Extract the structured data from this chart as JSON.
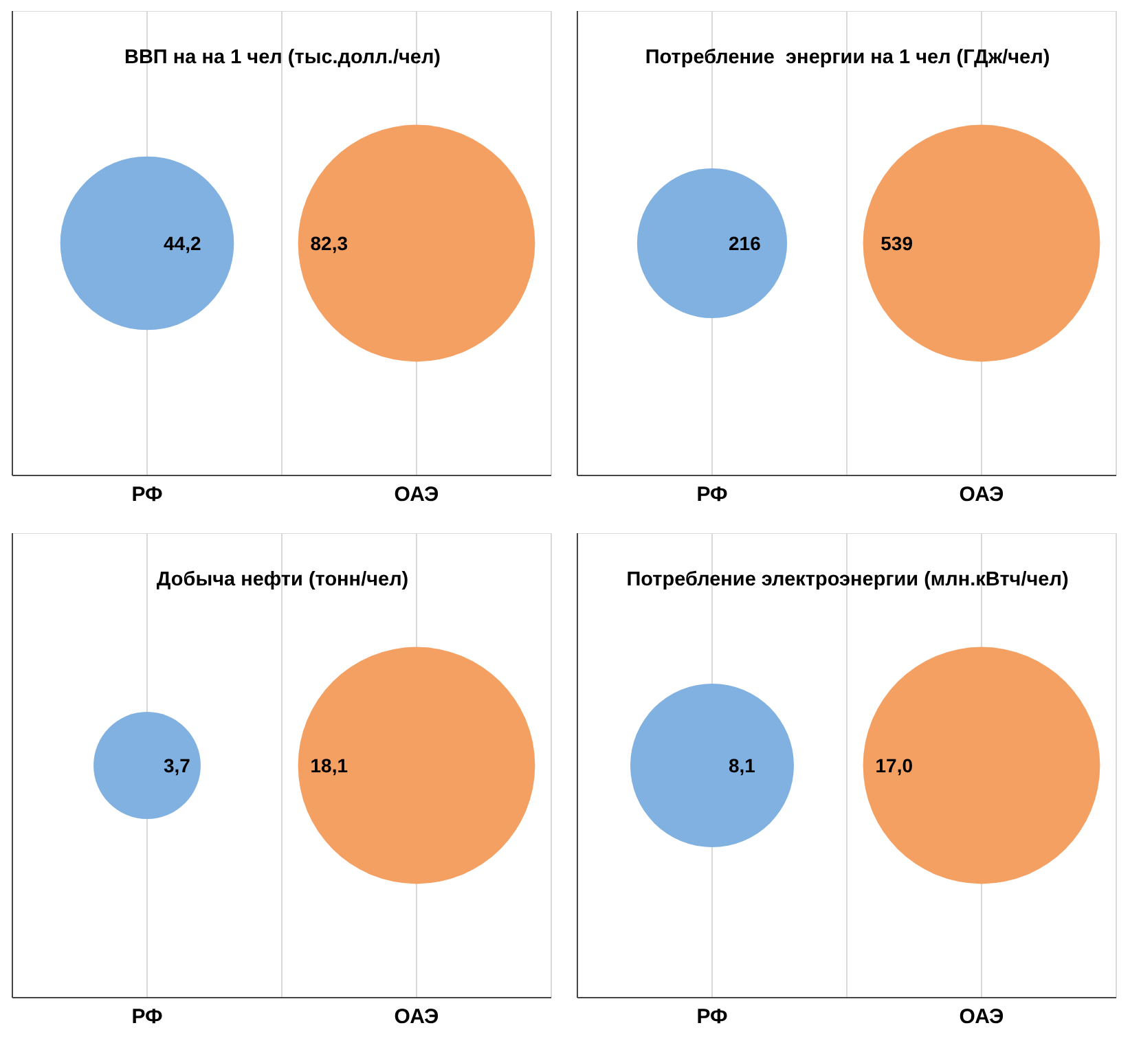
{
  "chart_data": [
    {
      "type": "other",
      "title": "ВВП на на 1 чел (тыс.долл./чел)",
      "categories": [
        "РФ",
        "ОАЭ"
      ],
      "values": [
        44.2,
        82.3
      ],
      "value_labels": [
        "44,2",
        "82,3"
      ],
      "colors": [
        "#80b1e1",
        "#f4a063"
      ]
    },
    {
      "type": "other",
      "title": "Потребление  энергии на 1 чел (ГДж/чел)",
      "categories": [
        "РФ",
        "ОАЭ"
      ],
      "values": [
        216,
        539
      ],
      "value_labels": [
        "216",
        "539"
      ],
      "colors": [
        "#80b1e1",
        "#f4a063"
      ]
    },
    {
      "type": "other",
      "title": "Добыча нефти (тонн/чел)",
      "categories": [
        "РФ",
        "ОАЭ"
      ],
      "values": [
        3.7,
        18.1
      ],
      "value_labels": [
        "3,7",
        "18,1"
      ],
      "colors": [
        "#80b1e1",
        "#f4a063"
      ]
    },
    {
      "type": "other",
      "title": "Потребление электроэнергии (млн.кВтч/чел)",
      "categories": [
        "РФ",
        "ОАЭ"
      ],
      "values": [
        8.1,
        17.0
      ],
      "value_labels": [
        "8,1",
        "17,0"
      ],
      "colors": [
        "#80b1e1",
        "#f4a063"
      ]
    }
  ]
}
